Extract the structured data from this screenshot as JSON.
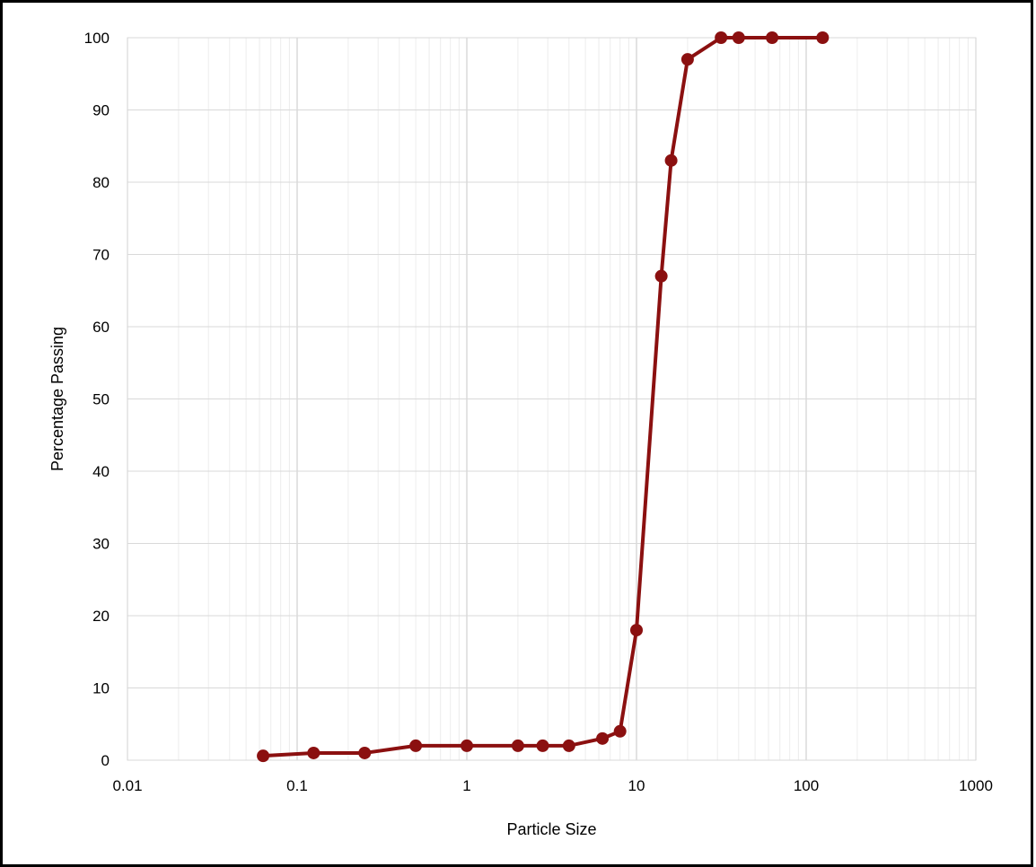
{
  "chart_data": {
    "type": "line",
    "title": "",
    "xlabel": "Particle Size",
    "ylabel": "Percentage Passing",
    "x_scale": "log",
    "xlim": [
      0.01,
      1000
    ],
    "ylim": [
      0,
      100
    ],
    "x_ticks": [
      "0.01",
      "0.1",
      "1",
      "10",
      "100",
      "1000"
    ],
    "y_ticks": [
      "0",
      "10",
      "20",
      "30",
      "40",
      "50",
      "60",
      "70",
      "80",
      "90",
      "100"
    ],
    "grid": true,
    "legend": "none",
    "series": [
      {
        "color": "#8B1010",
        "marker": "circle",
        "x": [
          0.063,
          0.125,
          0.25,
          0.5,
          1,
          2,
          2.8,
          4,
          6.3,
          8,
          10,
          14,
          16,
          20,
          31.5,
          40,
          63,
          125
        ],
        "y": [
          0.6,
          1,
          1,
          2,
          2,
          2,
          2,
          2,
          3,
          4,
          18,
          67,
          83,
          97,
          100,
          100,
          100,
          100
        ]
      }
    ]
  }
}
